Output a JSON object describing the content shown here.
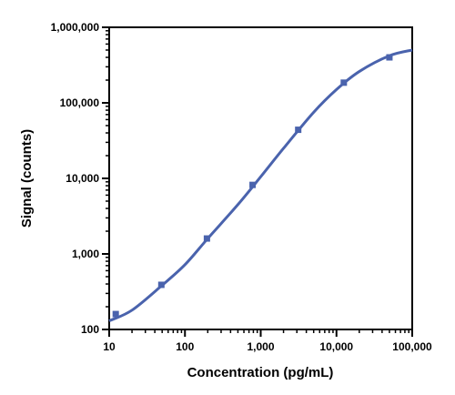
{
  "chart_data": {
    "type": "scatter",
    "xlabel": "Concentration (pg/mL)",
    "ylabel": "Signal (counts)",
    "xscale": "log",
    "yscale": "log",
    "xlim": [
      10,
      100000
    ],
    "ylim": [
      100,
      1000000
    ],
    "grid": false,
    "x_ticks": [
      {
        "value": 10,
        "label": "10"
      },
      {
        "value": 100,
        "label": "100"
      },
      {
        "value": 1000,
        "label": "1,000"
      },
      {
        "value": 10000,
        "label": "10,000"
      },
      {
        "value": 100000,
        "label": "100,000"
      }
    ],
    "y_ticks": [
      {
        "value": 100,
        "label": "100"
      },
      {
        "value": 1000,
        "label": "1,000"
      },
      {
        "value": 10000,
        "label": "10,000"
      },
      {
        "value": 100000,
        "label": "100,000"
      },
      {
        "value": 1000000,
        "label": "1,000,000"
      }
    ],
    "series": [
      {
        "color": "#4a63ad",
        "marker": "square",
        "points": [
          {
            "x": 12.2,
            "y": 160
          },
          {
            "x": 48.8,
            "y": 390
          },
          {
            "x": 195,
            "y": 1600
          },
          {
            "x": 781,
            "y": 8200
          },
          {
            "x": 3125,
            "y": 44000
          },
          {
            "x": 12500,
            "y": 185000
          },
          {
            "x": 50000,
            "y": 400000
          }
        ],
        "fit_curve": [
          {
            "x": 10,
            "y": 130
          },
          {
            "x": 20,
            "y": 180
          },
          {
            "x": 50,
            "y": 385
          },
          {
            "x": 100,
            "y": 720
          },
          {
            "x": 200,
            "y": 1600
          },
          {
            "x": 500,
            "y": 4500
          },
          {
            "x": 1000,
            "y": 10500
          },
          {
            "x": 2000,
            "y": 25000
          },
          {
            "x": 5000,
            "y": 75000
          },
          {
            "x": 10000,
            "y": 150000
          },
          {
            "x": 20000,
            "y": 260000
          },
          {
            "x": 50000,
            "y": 420000
          },
          {
            "x": 100000,
            "y": 500000
          }
        ]
      }
    ]
  }
}
